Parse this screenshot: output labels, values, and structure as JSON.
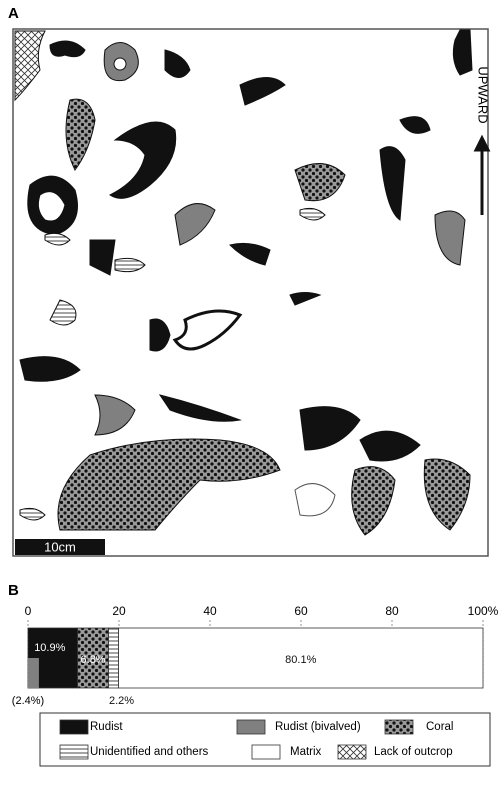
{
  "panel_a": {
    "label": "A",
    "direction": "UPWARD",
    "scale": "10cm"
  },
  "chart_data": {
    "type": "stacked-bar",
    "panel_label": "B",
    "xlim": [
      0,
      100
    ],
    "xticks": [
      0,
      20,
      40,
      60,
      80,
      {
        "value": 100,
        "label": "100%"
      }
    ],
    "series": [
      {
        "name": "Rudist",
        "fill": "#111111",
        "values": [
          10.9
        ],
        "value_labels": [
          "10.9%"
        ]
      },
      {
        "name": "Coral",
        "fill": "dots",
        "values": [
          6.8
        ],
        "value_labels": [
          "6.8%"
        ]
      },
      {
        "name": "Unidentified and others",
        "fill": "hlines",
        "values": [
          2.2
        ],
        "value_labels": [
          "2.2%"
        ]
      },
      {
        "name": "Matrix",
        "fill": "#ffffff",
        "values": [
          80.1
        ],
        "value_labels": [
          "80.1%"
        ]
      }
    ],
    "subseries": [
      {
        "name": "Rudist (bivalved)",
        "fill": "#808080",
        "values": [
          2.4
        ],
        "value_labels": [
          "(2.4%)"
        ]
      }
    ],
    "legend_only": [
      {
        "name": "Lack of outcrop",
        "fill": "crosshatch"
      }
    ]
  }
}
